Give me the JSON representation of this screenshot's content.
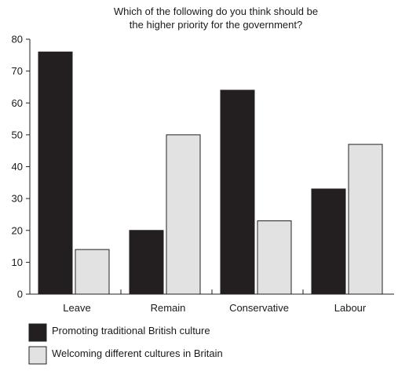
{
  "chart_data": {
    "type": "bar",
    "title_lines": [
      "Which of the following do you think should be",
      "the higher priority for the government?"
    ],
    "categories": [
      "Leave",
      "Remain",
      "Conservative",
      "Labour"
    ],
    "series": [
      {
        "name": "Promoting traditional British culture",
        "values": [
          76,
          20,
          64,
          33
        ],
        "color": "#231f20"
      },
      {
        "name": "Welcoming different cultures in Britain",
        "values": [
          14,
          50,
          23,
          47
        ],
        "color": "#e2e2e3"
      }
    ],
    "ylim": [
      0,
      80
    ],
    "yticks": [
      "0",
      "10",
      "20",
      "30",
      "40",
      "50",
      "60",
      "70",
      "80"
    ],
    "xlabel": "",
    "ylabel": "",
    "grid": false,
    "legend_position": "bottom-left"
  }
}
